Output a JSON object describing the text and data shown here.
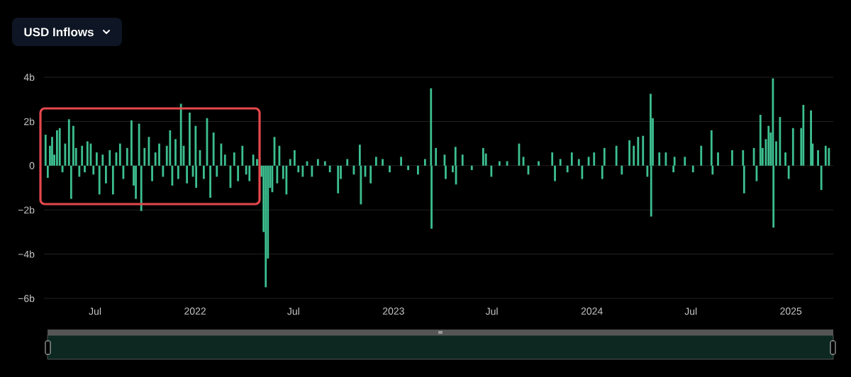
{
  "chart_data": {
    "type": "bar",
    "title": "USD Inflows",
    "color": "#3dbf90",
    "grid": "y",
    "xlim": [
      "2021-03-29",
      "2025-03-20"
    ],
    "xticks": [
      {
        "value": "2021-07-01",
        "label": "Jul"
      },
      {
        "value": "2022-01-01",
        "label": "2022"
      },
      {
        "value": "2022-07-01",
        "label": "Jul"
      },
      {
        "value": "2023-01-01",
        "label": "2023"
      },
      {
        "value": "2023-07-01",
        "label": "Jul"
      },
      {
        "value": "2024-01-01",
        "label": "2024"
      },
      {
        "value": "2024-07-01",
        "label": "Jul"
      },
      {
        "value": "2025-01-01",
        "label": "2025"
      }
    ],
    "ylim": [
      -6,
      4
    ],
    "yticks": [
      {
        "value": -6,
        "label": "−6b"
      },
      {
        "value": -4,
        "label": "−4b"
      },
      {
        "value": -2,
        "label": "−2b"
      },
      0,
      {
        "value": 2,
        "label": "2b"
      },
      {
        "value": 4,
        "label": "4b"
      }
    ],
    "x": [
      "2021-04-01",
      "2021-04-05",
      "2021-04-09",
      "2021-04-13",
      "2021-04-17",
      "2021-04-22",
      "2021-04-27",
      "2021-05-02",
      "2021-05-07",
      "2021-05-14",
      "2021-05-18",
      "2021-05-22",
      "2021-05-27",
      "2021-06-02",
      "2021-06-07",
      "2021-06-12",
      "2021-06-17",
      "2021-06-23",
      "2021-06-28",
      "2021-07-04",
      "2021-07-09",
      "2021-07-15",
      "2021-07-21",
      "2021-07-28",
      "2021-08-03",
      "2021-08-09",
      "2021-08-16",
      "2021-08-22",
      "2021-08-29",
      "2021-09-06",
      "2021-09-10",
      "2021-09-14",
      "2021-09-20",
      "2021-09-24",
      "2021-09-30",
      "2021-10-08",
      "2021-10-14",
      "2021-10-20",
      "2021-10-27",
      "2021-11-03",
      "2021-11-10",
      "2021-11-16",
      "2021-11-20",
      "2021-11-26",
      "2021-12-01",
      "2021-12-06",
      "2021-12-11",
      "2021-12-17",
      "2021-12-22",
      "2021-12-28",
      "2022-01-02",
      "2022-01-03",
      "2022-01-10",
      "2022-01-17",
      "2022-01-23",
      "2022-01-29",
      "2022-02-04",
      "2022-02-10",
      "2022-02-18",
      "2022-02-25",
      "2022-03-07",
      "2022-03-14",
      "2022-03-21",
      "2022-03-29",
      "2022-04-05",
      "2022-04-11",
      "2022-04-18",
      "2022-04-25",
      "2022-05-03",
      "2022-05-07",
      "2022-05-11",
      "2022-05-15",
      "2022-05-19",
      "2022-05-23",
      "2022-05-27",
      "2022-06-01",
      "2022-06-05",
      "2022-06-12",
      "2022-06-18",
      "2022-06-25",
      "2022-07-03",
      "2022-07-10",
      "2022-07-18",
      "2022-07-26",
      "2022-08-04",
      "2022-08-15",
      "2022-08-28",
      "2022-09-06",
      "2022-09-21",
      "2022-09-26",
      "2022-10-08",
      "2022-10-20",
      "2022-10-31",
      "2022-11-02",
      "2022-11-10",
      "2022-11-20",
      "2022-11-30",
      "2022-12-12",
      "2022-12-25",
      "2023-01-15",
      "2023-01-28",
      "2023-02-15",
      "2023-02-28",
      "2023-03-11",
      "2023-03-12",
      "2023-03-20",
      "2023-04-05",
      "2023-04-07",
      "2023-04-20",
      "2023-04-25",
      "2023-04-26",
      "2023-05-08",
      "2023-05-25",
      "2023-06-15",
      "2023-06-20",
      "2023-06-30",
      "2023-07-15",
      "2023-07-29",
      "2023-08-20",
      "2023-08-28",
      "2023-09-06",
      "2023-09-25",
      "2023-10-20",
      "2023-10-25",
      "2023-11-04",
      "2023-11-17",
      "2023-11-25",
      "2023-12-08",
      "2023-12-14",
      "2023-12-26",
      "2024-01-05",
      "2024-01-20",
      "2024-01-24",
      "2024-02-15",
      "2024-02-25",
      "2024-03-10",
      "2024-03-18",
      "2024-03-26",
      "2024-04-04",
      "2024-04-12",
      "2024-04-18",
      "2024-04-19",
      "2024-04-22",
      "2024-05-04",
      "2024-05-16",
      "2024-05-30",
      "2024-06-01",
      "2024-06-20",
      "2024-07-05",
      "2024-07-20",
      "2024-08-08",
      "2024-08-10",
      "2024-08-20",
      "2024-09-15",
      "2024-10-05",
      "2024-10-07",
      "2024-10-25",
      "2024-10-30",
      "2024-11-06",
      "2024-11-10",
      "2024-11-16",
      "2024-11-21",
      "2024-11-25",
      "2024-11-29",
      "2024-11-30",
      "2024-12-05",
      "2024-12-12",
      "2024-12-22",
      "2024-12-28",
      "2025-01-05",
      "2025-01-20",
      "2025-01-24",
      "2025-02-07",
      "2025-02-10",
      "2025-02-20",
      "2025-02-26",
      "2025-03-06",
      "2025-03-12"
    ],
    "values": [
      1.4,
      -0.55,
      0.9,
      1.3,
      0.5,
      1.6,
      1.7,
      -0.3,
      1.0,
      2.1,
      -1.5,
      1.8,
      0.8,
      -0.5,
      0.9,
      -0.3,
      1.1,
      1.0,
      -0.4,
      0.6,
      -1.3,
      0.5,
      -0.8,
      0.7,
      -1.3,
      0.6,
      1.0,
      -0.6,
      0.8,
      2.05,
      -0.9,
      -1.5,
      1.9,
      -2.05,
      0.8,
      1.3,
      -0.7,
      0.6,
      1.0,
      -0.5,
      0.9,
      1.6,
      -0.9,
      1.2,
      -0.6,
      2.8,
      0.9,
      -0.8,
      2.4,
      -0.5,
      1.8,
      -1.0,
      0.7,
      -0.6,
      2.15,
      -1.45,
      1.5,
      -0.5,
      1.0,
      0.5,
      -1.0,
      0.6,
      -0.7,
      0.9,
      -0.4,
      -0.7,
      0.5,
      0.3,
      -0.5,
      -3.0,
      -5.5,
      -4.2,
      -1.0,
      -1.2,
      1.3,
      -0.8,
      0.9,
      -0.6,
      -1.3,
      0.3,
      0.7,
      -0.3,
      -0.5,
      0.2,
      -0.5,
      0.3,
      0.2,
      -0.3,
      -1.25,
      -0.6,
      0.3,
      -0.4,
      0.95,
      -1.75,
      -0.5,
      -0.8,
      0.4,
      0.3,
      -0.3,
      0.4,
      -0.2,
      -0.4,
      0.3,
      3.5,
      -2.85,
      0.8,
      0.5,
      -0.6,
      -0.3,
      0.85,
      -0.85,
      0.5,
      -0.2,
      0.8,
      0.55,
      -0.5,
      0.2,
      0.2,
      1.0,
      0.4,
      -0.4,
      0.2,
      0.6,
      -0.7,
      0.3,
      -0.3,
      0.6,
      0.3,
      -0.6,
      0.4,
      0.6,
      -0.6,
      0.8,
      0.9,
      -0.4,
      1.15,
      0.9,
      1.3,
      1.35,
      -0.5,
      3.25,
      -2.3,
      2.15,
      0.6,
      0.6,
      -0.3,
      0.4,
      0.4,
      -0.3,
      0.9,
      1.6,
      -0.4,
      0.6,
      0.7,
      0.7,
      -1.25,
      0.8,
      -0.7,
      2.3,
      0.8,
      1.2,
      1.8,
      1.5,
      3.95,
      -2.8,
      1.1,
      2.2,
      0.6,
      -0.6,
      1.7,
      1.7,
      2.75,
      2.5,
      1.0,
      0.7,
      -1.1,
      0.9,
      0.8
    ]
  }
}
